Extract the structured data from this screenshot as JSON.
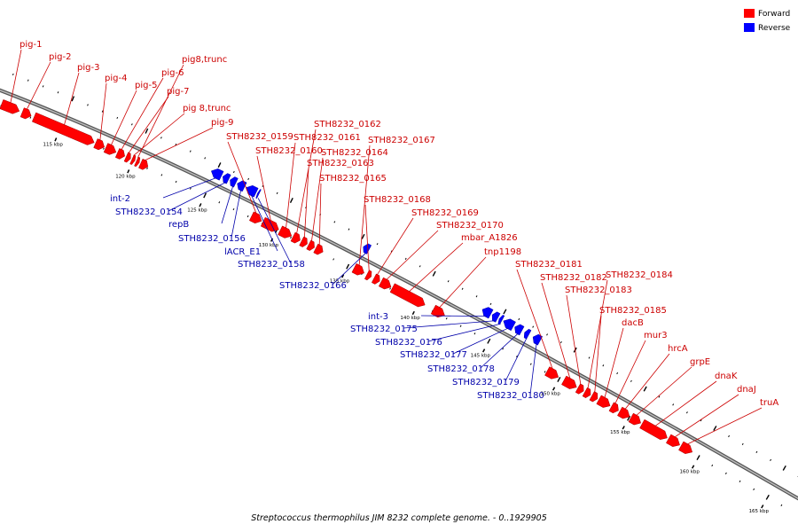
{
  "legend": [
    {
      "label": "Forward",
      "color": "#ff0000"
    },
    {
      "label": "Reverse",
      "color": "#0000ff"
    }
  ],
  "caption": "Streptococcus thermophilus JIM 8232 complete genome. - 0..1929905",
  "colors": {
    "forward": "#ff0000",
    "reverse": "#0000ff",
    "forward_label": "#cc0000",
    "reverse_label": "#0000aa",
    "backbone": "#888888"
  },
  "ticks": [
    {
      "kbp": 115,
      "label": "115 kbp"
    },
    {
      "kbp": 120,
      "label": "120 kbp"
    },
    {
      "kbp": 125,
      "label": "125 kbp"
    },
    {
      "kbp": 130,
      "label": "130 kbp"
    },
    {
      "kbp": 135,
      "label": "135 kbp"
    },
    {
      "kbp": 140,
      "label": "140 kbp"
    },
    {
      "kbp": 145,
      "label": "145 kbp"
    },
    {
      "kbp": 150,
      "label": "150 kbp"
    },
    {
      "kbp": 155,
      "label": "155 kbp"
    },
    {
      "kbp": 160,
      "label": "160 kbp"
    },
    {
      "kbp": 165,
      "label": "165 kbp"
    }
  ],
  "genes_forward": [
    {
      "name": "pig-1",
      "start": 111.0,
      "end": 112.2
    },
    {
      "name": "pig-2",
      "start": 112.4,
      "end": 113.0
    },
    {
      "name": "pig-3",
      "start": 113.2,
      "end": 117.3
    },
    {
      "name": "pig-4",
      "start": 117.4,
      "end": 118.0
    },
    {
      "name": "pig-5",
      "start": 118.1,
      "end": 118.8
    },
    {
      "name": "pig-6",
      "start": 118.9,
      "end": 119.4
    },
    {
      "name": "pig-7",
      "start": 119.5,
      "end": 119.8
    },
    {
      "name": "pig 8,trunc",
      "start": 119.9,
      "end": 120.1
    },
    {
      "name": "pig8,trunc",
      "start": 120.2,
      "end": 120.4
    },
    {
      "name": "pig-9",
      "start": 120.5,
      "end": 121.0
    },
    {
      "name": "STH8232_0159",
      "start": 128.2,
      "end": 128.9
    },
    {
      "name": "STH8232_0160",
      "start": 129.0,
      "end": 130.1
    },
    {
      "name": "STH8232_0161",
      "start": 130.2,
      "end": 131.0
    },
    {
      "name": "STH8232_0162",
      "start": 131.1,
      "end": 131.6
    },
    {
      "name": "STH8232_0163",
      "start": 131.7,
      "end": 132.1
    },
    {
      "name": "STH8232_0164",
      "start": 132.2,
      "end": 132.6
    },
    {
      "name": "STH8232_0165",
      "start": 132.7,
      "end": 133.2
    },
    {
      "name": "STH8232_0167",
      "start": 135.4,
      "end": 136.1
    },
    {
      "name": "STH8232_0168",
      "start": 136.3,
      "end": 136.6
    },
    {
      "name": "STH8232_0169",
      "start": 136.8,
      "end": 137.2
    },
    {
      "name": "STH8232_0170",
      "start": 137.3,
      "end": 138.0
    },
    {
      "name": "mbar_A1826",
      "start": 138.1,
      "end": 140.4
    },
    {
      "name": "tnp1198",
      "start": 141.0,
      "end": 141.8
    },
    {
      "name": "STH8232_0181",
      "start": 149.1,
      "end": 149.9
    },
    {
      "name": "STH8232_0182",
      "start": 150.3,
      "end": 151.2
    },
    {
      "name": "STH8232_0183",
      "start": 151.3,
      "end": 151.7
    },
    {
      "name": "STH8232_0184",
      "start": 151.8,
      "end": 152.2
    },
    {
      "name": "STH8232_0185",
      "start": 152.3,
      "end": 152.7
    },
    {
      "name": "dacB",
      "start": 152.8,
      "end": 153.6
    },
    {
      "name": "mur3",
      "start": 153.7,
      "end": 154.2
    },
    {
      "name": "hrcA",
      "start": 154.3,
      "end": 155.0
    },
    {
      "name": "grpE",
      "start": 155.1,
      "end": 155.8
    },
    {
      "name": "dnaK",
      "start": 155.9,
      "end": 157.7
    },
    {
      "name": "dnaJ",
      "start": 157.8,
      "end": 158.6
    },
    {
      "name": "truA",
      "start": 158.7,
      "end": 159.5
    }
  ],
  "genes_reverse": [
    {
      "name": "int-2",
      "start": 124.7,
      "end": 125.4
    },
    {
      "name": "STH8232_0154",
      "start": 125.5,
      "end": 125.9
    },
    {
      "name": "repB",
      "start": 126.0,
      "end": 126.4
    },
    {
      "name": "STH8232_0156",
      "start": 126.5,
      "end": 127.0
    },
    {
      "name": "lACR_E1",
      "start": 127.1,
      "end": 127.8
    },
    {
      "name": "STH8232_0158",
      "start": 127.9,
      "end": 128.0
    },
    {
      "name": "STH8232_0166",
      "start": 135.3,
      "end": 135.7
    },
    {
      "name": "int-3",
      "start": 143.7,
      "end": 144.3
    },
    {
      "name": "STH8232_0175",
      "start": 144.4,
      "end": 144.8
    },
    {
      "name": "STH8232_0176",
      "start": 144.9,
      "end": 145.1
    },
    {
      "name": "STH8232_0177",
      "start": 145.2,
      "end": 145.9
    },
    {
      "name": "STH8232_0178",
      "start": 146.0,
      "end": 146.5
    },
    {
      "name": "STH8232_0179",
      "start": 146.7,
      "end": 147.0
    },
    {
      "name": "STH8232_0180",
      "start": 147.3,
      "end": 147.8
    }
  ]
}
